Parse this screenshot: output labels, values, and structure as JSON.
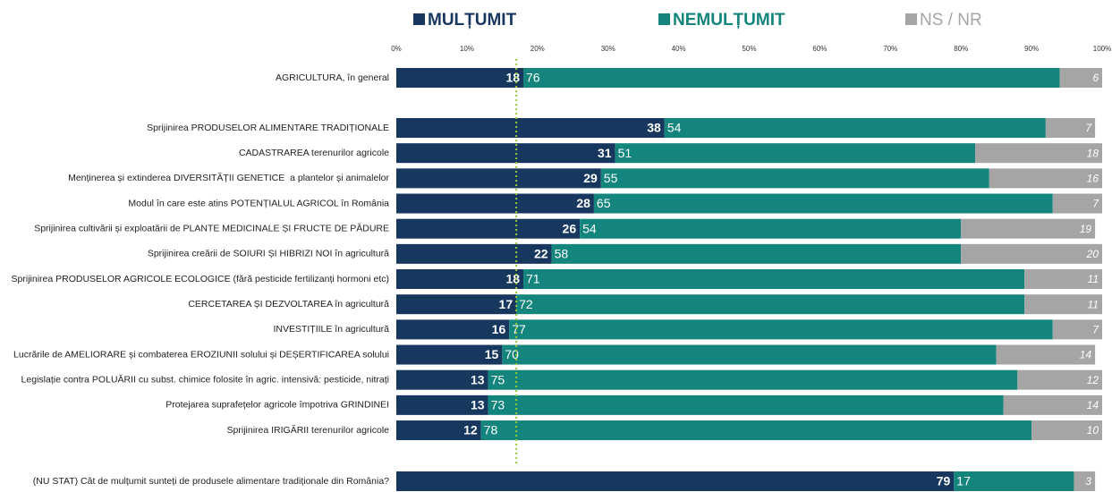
{
  "chart_data": {
    "type": "stacked-bar-horizontal",
    "categories": [
      "AGRICULTURA, în general",
      "Sprijinirea PRODUSELOR ALIMENTARE TRADIȚIONALE",
      "CADASTRAREA terenurilor agricole",
      "Menținerea și extinderea DIVERSITĂȚII GENETICE  a plantelor și animalelor",
      "Modul în care este atins POTENȚIALUL AGRICOL în România",
      "Sprijinirea cultivării și exploatării de PLANTE MEDICINALE ȘI FRUCTE DE PĂDURE",
      "Sprijinirea creării de SOIURI ȘI HIBRIZI NOI în agricultură",
      "Sprijinirea PRODUSELOR AGRICOLE ECOLOGICE (fără pesticide fertilizanți hormoni etc)",
      "CERCETAREA ȘI DEZVOLTAREA în agricultură",
      "INVESTIȚIILE în agricultură",
      "Lucrările de AMELIORARE și combaterea EROZIUNII solului și DEȘERTIFICAREA solului",
      "Legislație contra POLUĂRII cu subst. chimice folosite în agric. intensivă: pesticide, nitrați",
      "Protejarea suprafețelor agricole împotriva GRINDINEI",
      "Sprijinirea IRIGĂRII terenurilor agricole",
      "(NU STAT) Cât de mulțumit sunteți de produsele alimentare tradiționale din România?"
    ],
    "series": [
      {
        "name": "MULȚUMIT",
        "color": "#17375e",
        "values": [
          18,
          38,
          31,
          29,
          28,
          26,
          22,
          18,
          17,
          16,
          15,
          13,
          13,
          12,
          79
        ]
      },
      {
        "name": "NEMULȚUMIT",
        "color": "#13857d",
        "values": [
          76,
          54,
          51,
          55,
          65,
          54,
          58,
          71,
          72,
          77,
          70,
          75,
          73,
          78,
          17
        ]
      },
      {
        "name": "NS / NR",
        "color": "#a5a5a5",
        "values": [
          6,
          7,
          18,
          16,
          7,
          19,
          20,
          11,
          11,
          7,
          14,
          12,
          14,
          10,
          3
        ]
      }
    ],
    "xlim": [
      0,
      100
    ],
    "xticks": [
      {
        "value": 0,
        "label": "0%"
      },
      {
        "value": 10,
        "label": "10%"
      },
      {
        "value": 20,
        "label": "20%"
      },
      {
        "value": 30,
        "label": "30%"
      },
      {
        "value": 40,
        "label": "40%"
      },
      {
        "value": 50,
        "label": "50%"
      },
      {
        "value": 60,
        "label": "60%"
      },
      {
        "value": 70,
        "label": "70%"
      },
      {
        "value": 80,
        "label": "80%"
      },
      {
        "value": 90,
        "label": "90%"
      },
      {
        "value": 100,
        "label": "100%"
      }
    ],
    "reference_line": 17,
    "reference_color": "#9acd32"
  }
}
